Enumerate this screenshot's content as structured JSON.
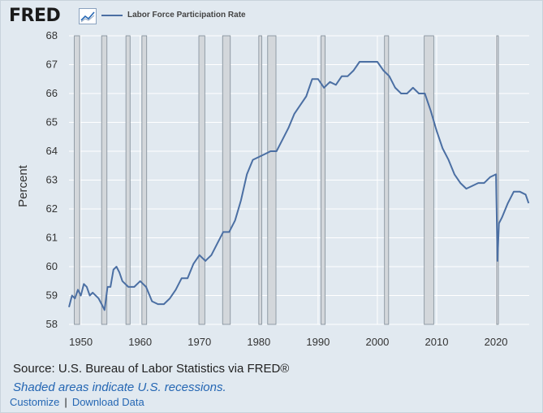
{
  "header": {
    "logo_text": "FRED",
    "logo_icon": "line-chart-icon"
  },
  "footer": {
    "source": "Source: U.S. Bureau of Labor Statistics via FRED®",
    "note": "Shaded areas indicate U.S. recessions.",
    "customize_label": "Customize",
    "separator": "|",
    "download_label": "Download Data"
  },
  "chart_data": {
    "type": "line",
    "title": "",
    "xlabel": "",
    "ylabel": "Percent",
    "xlim": [
      1948,
      2025.6
    ],
    "ylim": [
      58,
      68
    ],
    "yticks": [
      58,
      59,
      60,
      61,
      62,
      63,
      64,
      65,
      66,
      67,
      68
    ],
    "xticks": [
      1950,
      1960,
      1970,
      1980,
      1990,
      2000,
      2010,
      2020
    ],
    "legend": "top-left",
    "grid": true,
    "colors": {
      "line": "#4b6fa3",
      "recession": "#d3d7db",
      "background": "#e1e9f0",
      "grid": "#ffffff"
    },
    "series": [
      {
        "name": "Labor Force Participation Rate",
        "x": [
          1948.0,
          1948.5,
          1949.0,
          1949.5,
          1950.0,
          1950.5,
          1951.0,
          1951.5,
          1952.0,
          1953.0,
          1953.5,
          1954.0,
          1954.5,
          1955.0,
          1955.5,
          1956.0,
          1956.5,
          1957.0,
          1958.0,
          1959.0,
          1960.0,
          1960.5,
          1961.0,
          1962.0,
          1963.0,
          1964.0,
          1965.0,
          1966.0,
          1967.0,
          1968.0,
          1969.0,
          1970.0,
          1971.0,
          1972.0,
          1973.0,
          1974.0,
          1975.0,
          1976.0,
          1977.0,
          1978.0,
          1979.0,
          1980.0,
          1981.0,
          1982.0,
          1983.0,
          1984.0,
          1985.0,
          1986.0,
          1987.0,
          1988.0,
          1989.0,
          1990.0,
          1991.0,
          1992.0,
          1993.0,
          1994.0,
          1995.0,
          1996.0,
          1997.0,
          1998.0,
          1999.0,
          2000.0,
          2001.0,
          2002.0,
          2003.0,
          2004.0,
          2005.0,
          2006.0,
          2007.0,
          2008.0,
          2009.0,
          2010.0,
          2011.0,
          2012.0,
          2013.0,
          2014.0,
          2015.0,
          2016.0,
          2017.0,
          2018.0,
          2019.0,
          2020.0,
          2020.25,
          2020.5,
          2021.0,
          2022.0,
          2023.0,
          2024.0,
          2025.0,
          2025.5
        ],
        "values": [
          58.6,
          59.0,
          58.9,
          59.2,
          59.0,
          59.4,
          59.3,
          59.0,
          59.1,
          58.9,
          58.7,
          58.5,
          59.3,
          59.3,
          59.9,
          60.0,
          59.8,
          59.5,
          59.3,
          59.3,
          59.5,
          59.4,
          59.3,
          58.8,
          58.7,
          58.7,
          58.9,
          59.2,
          59.6,
          59.6,
          60.1,
          60.4,
          60.2,
          60.4,
          60.8,
          61.2,
          61.2,
          61.6,
          62.3,
          63.2,
          63.7,
          63.8,
          63.9,
          64.0,
          64.0,
          64.4,
          64.8,
          65.3,
          65.6,
          65.9,
          66.5,
          66.5,
          66.2,
          66.4,
          66.3,
          66.6,
          66.6,
          66.8,
          67.1,
          67.1,
          67.1,
          67.1,
          66.8,
          66.6,
          66.2,
          66.0,
          66.0,
          66.2,
          66.0,
          66.0,
          65.4,
          64.7,
          64.1,
          63.7,
          63.2,
          62.9,
          62.7,
          62.8,
          62.9,
          62.9,
          63.1,
          63.2,
          60.2,
          61.5,
          61.7,
          62.2,
          62.6,
          62.6,
          62.5,
          62.2
        ]
      }
    ],
    "recessions": [
      [
        1948.9,
        1949.8
      ],
      [
        1953.5,
        1954.4
      ],
      [
        1957.6,
        1958.3
      ],
      [
        1960.3,
        1961.1
      ],
      [
        1969.9,
        1970.9
      ],
      [
        1973.9,
        1975.2
      ],
      [
        1980.0,
        1980.5
      ],
      [
        1981.5,
        1982.9
      ],
      [
        1990.5,
        1991.2
      ],
      [
        2001.2,
        2001.9
      ],
      [
        2007.9,
        2009.5
      ],
      [
        2020.1,
        2020.4
      ]
    ]
  }
}
